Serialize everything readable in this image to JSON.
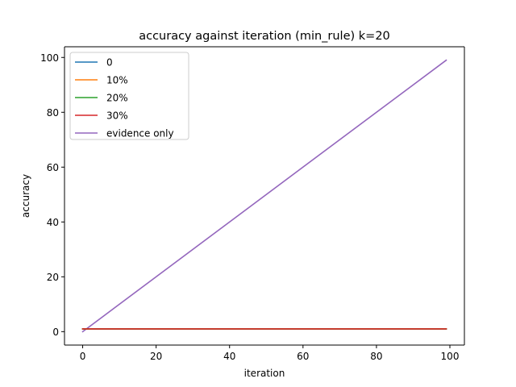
{
  "chart_data": {
    "type": "line",
    "title": "accuracy against iteration (min_rule) k=20",
    "xlabel": "iteration",
    "ylabel": "accuracy",
    "xlim": [
      -4.95,
      103.95
    ],
    "ylim": [
      -4.9,
      103.9
    ],
    "xticks": [
      0,
      20,
      40,
      60,
      80,
      100
    ],
    "yticks": [
      0,
      20,
      40,
      60,
      80,
      100
    ],
    "grid": false,
    "legend_position": "top-left",
    "x": {
      "start": 0,
      "end": 99
    },
    "series": [
      {
        "name": "0",
        "color": "#1f77b4",
        "values": {
          "start": 1,
          "end": 1
        }
      },
      {
        "name": "10%",
        "color": "#ff7f0e",
        "values": {
          "start": 1,
          "end": 1
        }
      },
      {
        "name": "20%",
        "color": "#2ca02c",
        "values": {
          "start": 1,
          "end": 1
        }
      },
      {
        "name": "30%",
        "color": "#d62728",
        "values": {
          "start": 1,
          "end": 1
        }
      },
      {
        "name": "evidence only",
        "color": "#9467bd",
        "values": {
          "start": 0,
          "end": 99
        }
      }
    ]
  }
}
